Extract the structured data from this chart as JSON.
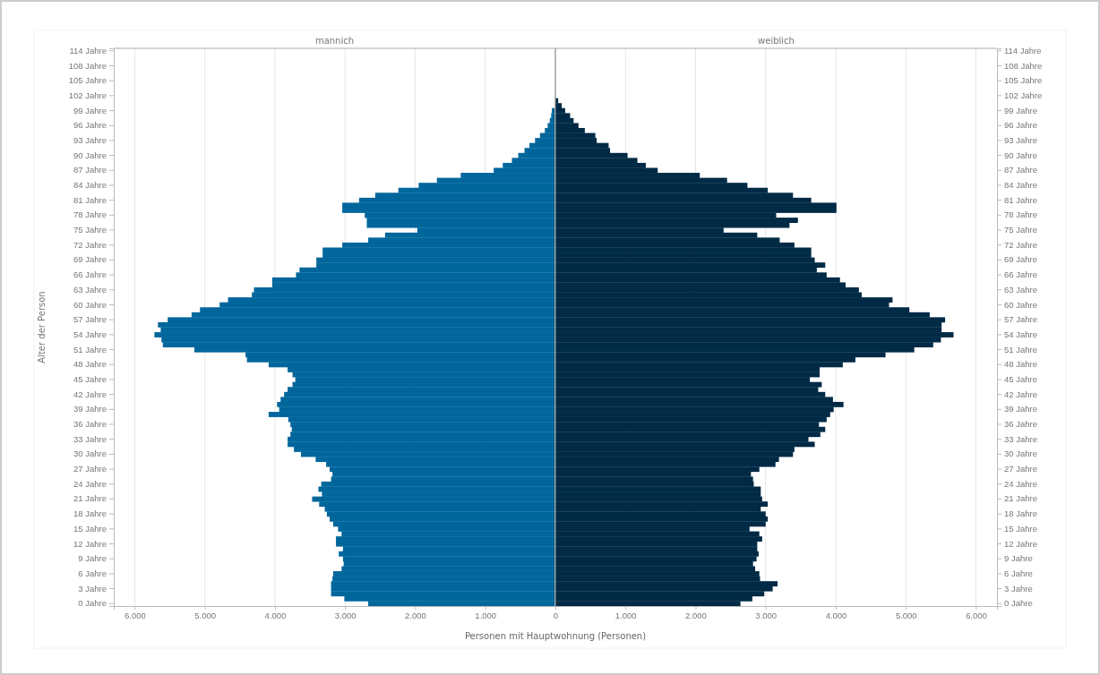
{
  "chart_data": [
    {
      "type": "bar",
      "orientation": "horizontal",
      "title": "mannich",
      "xlabel": "Personen mit Hauptwohnung (Personen)",
      "ylabel": "Alter der Person",
      "grid": "x",
      "categories": [
        "114 Jahre",
        null,
        null,
        "108 Jahre",
        null,
        null,
        "105 Jahre",
        null,
        null,
        "102 Jahre",
        null,
        null,
        "99 Jahre",
        null,
        null,
        "96 Jahre",
        null,
        null,
        "93 Jahre",
        null,
        null,
        "90 Jahre",
        null,
        null,
        "87 Jahre",
        null,
        null,
        "84 Jahre",
        null,
        null,
        "81 Jahre",
        null,
        null,
        "78 Jahre",
        null,
        null,
        "75 Jahre",
        null,
        null,
        "72 Jahre",
        null,
        null,
        "69 Jahre",
        null,
        null,
        "66 Jahre",
        null,
        null,
        "63 Jahre",
        null,
        null,
        "60 Jahre",
        null,
        null,
        "57 Jahre",
        null,
        null,
        "54 Jahre",
        null,
        null,
        "51 Jahre",
        null,
        null,
        "48 Jahre",
        null,
        null,
        "45 Jahre",
        null,
        null,
        "42 Jahre",
        null,
        null,
        "39 Jahre",
        null,
        null,
        "36 Jahre",
        null,
        null,
        "33 Jahre",
        null,
        null,
        "30 Jahre",
        null,
        null,
        "27 Jahre",
        null,
        null,
        "24 Jahre",
        null,
        null,
        "21 Jahre",
        null,
        null,
        "18 Jahre",
        null,
        null,
        "15 Jahre",
        null,
        null,
        "12 Jahre",
        null,
        null,
        "9 Jahre",
        null,
        null,
        "6 Jahre",
        null,
        null,
        "3 Jahre",
        null,
        null,
        "0 Jahre"
      ],
      "xlim": [
        6300,
        0
      ],
      "xticks": [
        {
          "value": 6000,
          "label": "6.000"
        },
        {
          "value": 5000,
          "label": "5.000"
        },
        {
          "value": 4000,
          "label": "4.000"
        },
        {
          "value": 3000,
          "label": "3.000"
        },
        {
          "value": 2000,
          "label": "2.000"
        },
        {
          "value": 1000,
          "label": "1.000"
        },
        0
      ],
      "series": [
        {
          "color": "#00669c",
          "values": [
            null,
            null,
            null,
            null,
            null,
            null,
            null,
            null,
            null,
            null,
            null,
            null,
            50,
            60,
            80,
            110,
            150,
            220,
            290,
            370,
            440,
            530,
            620,
            750,
            880,
            1350,
            1690,
            1950,
            2240,
            2570,
            2800,
            3040,
            3040,
            2720,
            2690,
            2690,
            1970,
            2430,
            2670,
            3040,
            3320,
            3320,
            3410,
            3410,
            3650,
            3700,
            4040,
            4040,
            4300,
            4330,
            4670,
            4790,
            5070,
            5190,
            5530,
            5670,
            5630,
            5720,
            5620,
            5600,
            5150,
            4420,
            4400,
            4090,
            3820,
            3750,
            3710,
            3750,
            3820,
            3870,
            3920,
            3970,
            3940,
            4090,
            3810,
            3780,
            3760,
            3780,
            3820,
            3820,
            3730,
            3630,
            3420,
            3270,
            3220,
            3180,
            3200,
            3340,
            3380,
            3330,
            3470,
            3370,
            3290,
            3260,
            3220,
            3170,
            3100,
            3050,
            3130,
            3130,
            3030,
            3090,
            3030,
            3020,
            3050,
            3170,
            3180,
            3200,
            3200,
            3200,
            3010,
            2670
          ]
        }
      ]
    },
    {
      "type": "bar",
      "orientation": "horizontal",
      "title": "weiblich",
      "grid": "x",
      "categories": [
        "114 Jahre",
        null,
        null,
        "108 Jahre",
        null,
        null,
        "105 Jahre",
        null,
        null,
        "102 Jahre",
        null,
        null,
        "99 Jahre",
        null,
        null,
        "96 Jahre",
        null,
        null,
        "93 Jahre",
        null,
        null,
        "90 Jahre",
        null,
        null,
        "87 Jahre",
        null,
        null,
        "84 Jahre",
        null,
        null,
        "81 Jahre",
        null,
        null,
        "78 Jahre",
        null,
        null,
        "75 Jahre",
        null,
        null,
        "72 Jahre",
        null,
        null,
        "69 Jahre",
        null,
        null,
        "66 Jahre",
        null,
        null,
        "63 Jahre",
        null,
        null,
        "60 Jahre",
        null,
        null,
        "57 Jahre",
        null,
        null,
        "54 Jahre",
        null,
        null,
        "51 Jahre",
        null,
        null,
        "48 Jahre",
        null,
        null,
        "45 Jahre",
        null,
        null,
        "42 Jahre",
        null,
        null,
        "39 Jahre",
        null,
        null,
        "36 Jahre",
        null,
        null,
        "33 Jahre",
        null,
        null,
        "30 Jahre",
        null,
        null,
        "27 Jahre",
        null,
        null,
        "24 Jahre",
        null,
        null,
        "21 Jahre",
        null,
        null,
        "18 Jahre",
        null,
        null,
        "15 Jahre",
        null,
        null,
        "12 Jahre",
        null,
        null,
        "9 Jahre",
        null,
        null,
        "6 Jahre",
        null,
        null,
        "3 Jahre",
        null,
        null,
        "0 Jahre"
      ],
      "xlim": [
        0,
        6300
      ],
      "xticks": [
        {
          "value": 0,
          "label": null
        },
        {
          "value": 1000,
          "label": "1.000"
        },
        {
          "value": 2000,
          "label": "2.000"
        },
        {
          "value": 3000,
          "label": "3.000"
        },
        {
          "value": 4000,
          "label": "4.000"
        },
        {
          "value": 5000,
          "label": "5.000"
        },
        {
          "value": 6000,
          "label": "6.000"
        }
      ],
      "series": [
        {
          "color": "#002a45",
          "values": [
            null,
            null,
            null,
            null,
            null,
            null,
            null,
            null,
            null,
            null,
            40,
            90,
            140,
            210,
            260,
            330,
            420,
            570,
            590,
            760,
            780,
            1030,
            1170,
            1290,
            1460,
            2060,
            2450,
            2740,
            3030,
            3390,
            3650,
            4010,
            4010,
            3150,
            3460,
            3340,
            2400,
            2880,
            3200,
            3410,
            3650,
            3650,
            3700,
            3850,
            3730,
            3870,
            4060,
            4140,
            4330,
            4370,
            4810,
            4760,
            5050,
            5340,
            5560,
            5510,
            5510,
            5680,
            5500,
            5390,
            5120,
            4710,
            4280,
            4100,
            3770,
            3770,
            3630,
            3800,
            3750,
            3850,
            3960,
            4110,
            3970,
            3920,
            3870,
            3760,
            3850,
            3780,
            3610,
            3700,
            3410,
            3390,
            3190,
            3140,
            2910,
            2790,
            2820,
            2830,
            2930,
            2930,
            2950,
            3030,
            2930,
            3000,
            3030,
            3000,
            2770,
            2910,
            2950,
            2880,
            2880,
            2900,
            2870,
            2820,
            2850,
            2910,
            2920,
            3170,
            3100,
            2980,
            2810,
            2640
          ]
        }
      ]
    }
  ]
}
